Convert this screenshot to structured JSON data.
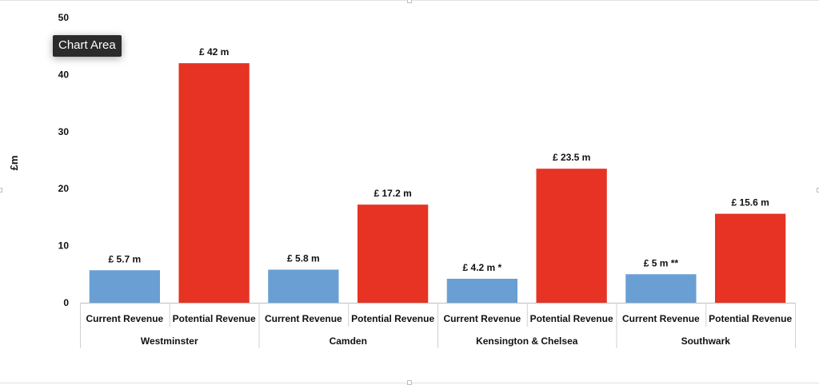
{
  "tooltip": {
    "text": "Chart Area"
  },
  "chart_data": {
    "type": "bar",
    "ylabel": "£m",
    "ylim": [
      0,
      50
    ],
    "yticks": [
      0,
      10,
      20,
      30,
      40,
      50
    ],
    "grid": false,
    "groups": [
      {
        "name": "Westminster",
        "bars": [
          {
            "category": "Current Revenue",
            "value": 5.7,
            "label": "£ 5.7 m",
            "series": "current"
          },
          {
            "category": "Potential Revenue",
            "value": 42,
            "label": "£ 42 m",
            "series": "potential"
          }
        ]
      },
      {
        "name": "Camden",
        "bars": [
          {
            "category": "Current Revenue",
            "value": 5.8,
            "label": "£ 5.8 m",
            "series": "current"
          },
          {
            "category": "Potential Revenue",
            "value": 17.2,
            "label": "£ 17.2 m",
            "series": "potential"
          }
        ]
      },
      {
        "name": "Kensington & Chelsea",
        "bars": [
          {
            "category": "Current Revenue",
            "value": 4.2,
            "label": "£ 4.2 m *",
            "series": "current"
          },
          {
            "category": "Potential Revenue",
            "value": 23.5,
            "label": "£ 23.5 m",
            "series": "potential"
          }
        ]
      },
      {
        "name": "Southwark",
        "bars": [
          {
            "category": "Current Revenue",
            "value": 5,
            "label": "£ 5 m **",
            "series": "current"
          },
          {
            "category": "Potential Revenue",
            "value": 15.6,
            "label": "£ 15.6 m",
            "series": "potential"
          }
        ]
      }
    ],
    "colors": {
      "current": "#6a9fd4",
      "potential": "#e63323"
    }
  }
}
